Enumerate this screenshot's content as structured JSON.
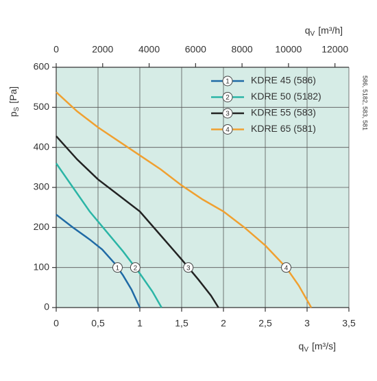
{
  "chart_data": {
    "type": "line",
    "x_label": {
      "symbol": "q",
      "subscript": "V",
      "unit": "[m³/s]"
    },
    "x2_label": {
      "symbol": "q",
      "subscript": "V",
      "unit": "[m³/h]"
    },
    "y_label": {
      "symbol": "p",
      "subscript": "S",
      "unit": "[Pa]"
    },
    "side_note": "586, 5182, 583, 581",
    "xlim": [
      0,
      3.5
    ],
    "xticks": [
      0,
      {
        "value": 0.5,
        "label": "0,5"
      },
      1,
      {
        "value": 1.5,
        "label": "1,5"
      },
      2,
      {
        "value": 2.5,
        "label": "2,5"
      },
      3,
      {
        "value": 3.5,
        "label": "3,5"
      }
    ],
    "x2lim": [
      0,
      12600
    ],
    "x2ticks": [
      0,
      2000,
      4000,
      6000,
      8000,
      10000,
      12000
    ],
    "ylim": [
      0,
      600
    ],
    "yticks": [
      0,
      100,
      200,
      300,
      400,
      500,
      600
    ],
    "grid": true,
    "legend": "top-right",
    "background": "#d6ece6",
    "annotation_y": 100,
    "series": [
      {
        "name": "KDRE 45 (586)",
        "marker_label": "1",
        "color": "#1f6aa5",
        "x": [
          0,
          0.2,
          0.4,
          0.55,
          0.7,
          0.8,
          0.9,
          1.0
        ],
        "values": [
          232,
          200,
          170,
          145,
          110,
          80,
          45,
          0
        ]
      },
      {
        "name": "KDRE 50 (5182)",
        "marker_label": "2",
        "color": "#2bb5a6",
        "x": [
          0,
          0.2,
          0.4,
          0.6,
          0.8,
          1.0,
          1.15,
          1.26
        ],
        "values": [
          360,
          300,
          240,
          190,
          140,
          85,
          40,
          0
        ]
      },
      {
        "name": "KDRE 55 (583)",
        "marker_label": "3",
        "color": "#222222",
        "x": [
          0,
          0.25,
          0.5,
          0.75,
          1.0,
          1.25,
          1.5,
          1.7,
          1.85,
          1.94
        ],
        "values": [
          428,
          370,
          320,
          280,
          240,
          180,
          120,
          70,
          30,
          0
        ]
      },
      {
        "name": "KDRE 65 (581)",
        "marker_label": "4",
        "color": "#f0a030",
        "x": [
          0,
          0.25,
          0.5,
          0.75,
          1.0,
          1.25,
          1.5,
          1.75,
          2.0,
          2.25,
          2.5,
          2.75,
          2.9,
          3.05
        ],
        "values": [
          538,
          490,
          450,
          415,
          380,
          345,
          305,
          270,
          240,
          200,
          155,
          100,
          55,
          0
        ]
      }
    ]
  }
}
